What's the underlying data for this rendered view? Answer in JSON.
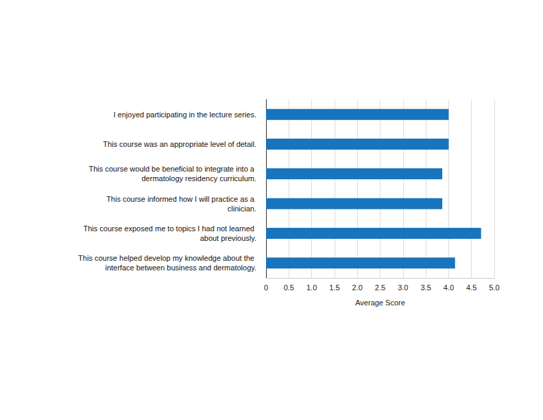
{
  "chart_data": {
    "type": "bar",
    "orientation": "horizontal",
    "categories": [
      "I enjoyed participating in the lecture series.",
      "This course was an appropriate level of detail.",
      "This course would be beneficial to integrate into a dermatology residency curriculum.",
      "This course informed how I will practice as a clinician.",
      "This course exposed me to topics I had not learned about previously.",
      "This course helped develop my knowledge about the interface between business and dermatology."
    ],
    "values": [
      4.0,
      4.0,
      3.86,
      3.86,
      4.71,
      4.14
    ],
    "color": "#1874bd",
    "xlabel": "Average Score",
    "xlim": [
      0,
      5
    ],
    "xticks": [
      0,
      0.5,
      {
        "value": 1,
        "label": "1.0"
      },
      1.5,
      {
        "value": 2,
        "label": "2.0"
      },
      2.5,
      {
        "value": 3,
        "label": "3.0"
      },
      3.5,
      {
        "value": 4,
        "label": "4.0"
      },
      4.5,
      {
        "value": 5,
        "label": "5.0"
      }
    ],
    "grid": true
  }
}
